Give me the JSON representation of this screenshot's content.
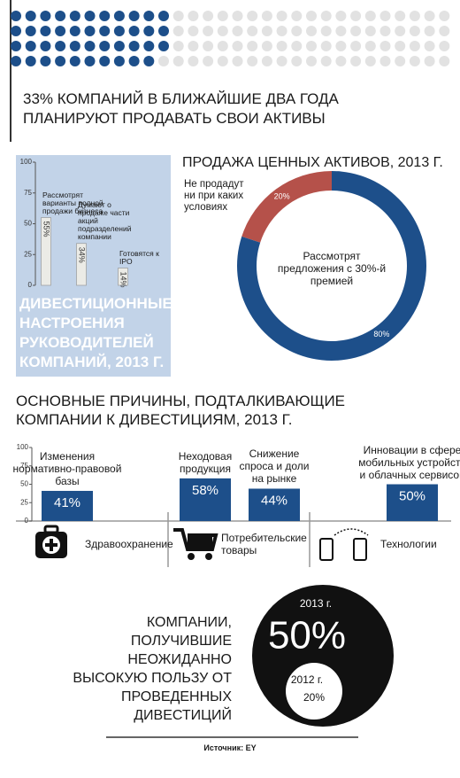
{
  "header": {
    "title": "33% КОМПАНИЙ В БЛИЖАЙШИЕ ДВА ГОДА ПЛАНИРУЮТ ПРОДАВАТЬ СВОИ АКТИВЫ"
  },
  "chart_data": [
    {
      "type": "bar",
      "title": "ДИВЕСТИЦИОННЫЕ НАСТРОЕНИЯ РУКОВОДИТЕЛЕЙ КОМПАНИЙ, 2013 Г.",
      "categories": [
        "Рассмотрят варианты полной продажи бизнеса",
        "Думают о продаже части акций подразделений компании",
        "Готовятся к IPO"
      ],
      "values": [
        55,
        34,
        14
      ],
      "value_labels": [
        "55%",
        "34%",
        "14%"
      ],
      "color": "#ebebe6",
      "ylim": [
        0,
        100
      ],
      "yticks": [
        0,
        25,
        50,
        75,
        100
      ]
    },
    {
      "type": "donut",
      "title": "ПРОДАЖА ЦЕННЫХ АКТИВОВ, 2013 Г.",
      "categories": [
        "Не продадут ни при каких условиях",
        "Рассмотрят предложения с 30%-й премией"
      ],
      "values": [
        20,
        80
      ],
      "value_labels": [
        "20%",
        "80%"
      ],
      "colors": [
        "#b5514a",
        "#1d4f8a"
      ]
    },
    {
      "type": "bar",
      "title": "ОСНОВНЫЕ ПРИЧИНЫ, ПОДТАЛКИВАЮЩИЕ КОМПАНИИ К ДИВЕСТИЦИЯМ, 2013 Г.",
      "categories": [
        "Изменения нормативно-правовой базы",
        "Неходовая продукция",
        "Снижение спроса и доли на рынке",
        "Инновации в сфере мобильных устройств и облачных сервисов"
      ],
      "values": [
        41,
        58,
        44,
        50
      ],
      "value_labels": [
        "41%",
        "58%",
        "44%",
        "50%"
      ],
      "color": "#1d4f8a",
      "ylim": [
        0,
        100
      ],
      "yticks": [
        0,
        25,
        50,
        75,
        100
      ]
    },
    {
      "type": "circle",
      "title": "КОМПАНИИ, ПОЛУЧИВШИЕ НЕОЖИДАННО ВЫСОКУЮ ПОЛЬЗУ ОТ ПРОВЕДЕННЫХ ДИВЕСТИЦИЙ",
      "categories": [
        "2013 г.",
        "2012 г."
      ],
      "values": [
        50,
        20
      ],
      "value_labels": [
        "50%",
        "20%"
      ],
      "colors": [
        "#111111",
        "#ffffff"
      ]
    }
  ],
  "industries": [
    "Здравоохранение",
    "Потребительские товары",
    "Технологии"
  ],
  "source": "Источник: EY"
}
